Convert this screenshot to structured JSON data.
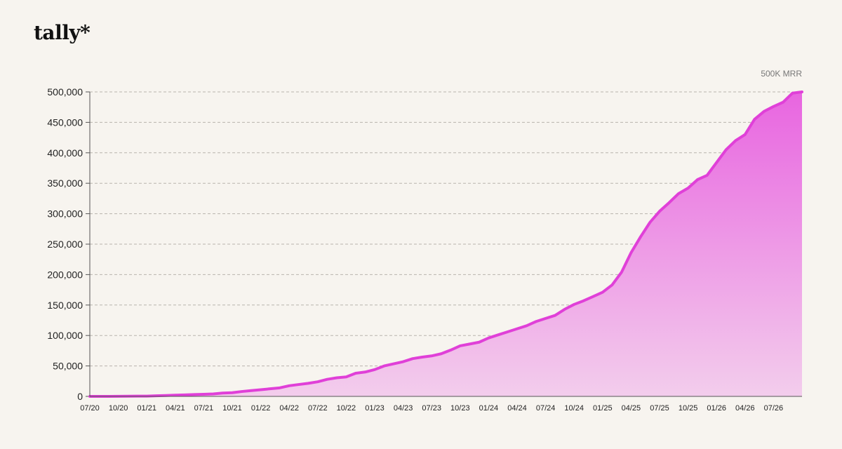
{
  "brand": {
    "logo_text": "tally*"
  },
  "chart_data": {
    "type": "area",
    "annotation": "500K MRR",
    "x_tick_labels": [
      "07/20",
      "10/20",
      "01/21",
      "04/21",
      "07/21",
      "10/21",
      "01/22",
      "04/22",
      "07/22",
      "10/22",
      "01/23",
      "04/23",
      "07/23",
      "10/23",
      "01/24",
      "04/24",
      "07/24",
      "10/24",
      "01/25",
      "04/25",
      "07/25",
      "10/25",
      "01/26",
      "04/26",
      "07/26"
    ],
    "y_tick_labels": [
      "0",
      "50,000",
      "100,000",
      "150,000",
      "200,000",
      "250,000",
      "300,000",
      "350,000",
      "400,000",
      "450,000",
      "500,000"
    ],
    "ylim": [
      0,
      500000
    ],
    "grid": true,
    "line_color": "#e040d8",
    "fill_top_color": "#e865e0",
    "fill_bottom_color": "#f3cdec",
    "x": [
      "2020-07",
      "2020-08",
      "2020-09",
      "2020-10",
      "2020-11",
      "2020-12",
      "2021-01",
      "2021-02",
      "2021-03",
      "2021-04",
      "2021-05",
      "2021-06",
      "2021-07",
      "2021-08",
      "2021-09",
      "2021-10",
      "2021-11",
      "2021-12",
      "2022-01",
      "2022-02",
      "2022-03",
      "2022-04",
      "2022-05",
      "2022-06",
      "2022-07",
      "2022-08",
      "2022-09",
      "2022-10",
      "2022-11",
      "2022-12",
      "2023-01",
      "2023-02",
      "2023-03",
      "2023-04",
      "2023-05",
      "2023-06",
      "2023-07",
      "2023-08",
      "2023-09",
      "2023-10",
      "2023-11",
      "2023-12",
      "2024-01",
      "2024-02",
      "2024-03",
      "2024-04",
      "2024-05",
      "2024-06",
      "2024-07",
      "2024-08",
      "2024-09",
      "2024-10",
      "2024-11",
      "2024-12",
      "2025-01",
      "2025-02",
      "2025-03",
      "2025-04",
      "2025-05",
      "2025-06",
      "2025-07",
      "2025-08",
      "2025-09",
      "2025-10",
      "2025-11",
      "2025-12",
      "2026-01",
      "2026-02",
      "2026-03",
      "2026-04",
      "2026-05",
      "2026-06",
      "2026-07",
      "2026-08",
      "2026-09",
      "2026-10"
    ],
    "values": [
      0,
      0,
      0,
      200,
      300,
      400,
      500,
      1000,
      1500,
      2000,
      2500,
      3000,
      3500,
      4000,
      5500,
      6000,
      8000,
      9500,
      11000,
      12500,
      14000,
      17500,
      19500,
      21500,
      24000,
      28000,
      30500,
      32000,
      38000,
      40000,
      44000,
      50000,
      53500,
      57000,
      62000,
      64500,
      66500,
      70000,
      76000,
      83000,
      86000,
      89000,
      96000,
      101000,
      106000,
      111000,
      116000,
      123000,
      128000,
      133000,
      143000,
      151000,
      157000,
      164000,
      171000,
      183000,
      204000,
      236000,
      262000,
      286000,
      304000,
      318000,
      333000,
      342000,
      356000,
      363000,
      384000,
      405000,
      420000,
      430000,
      455000,
      468000,
      476000,
      483000,
      498000,
      500000
    ]
  }
}
